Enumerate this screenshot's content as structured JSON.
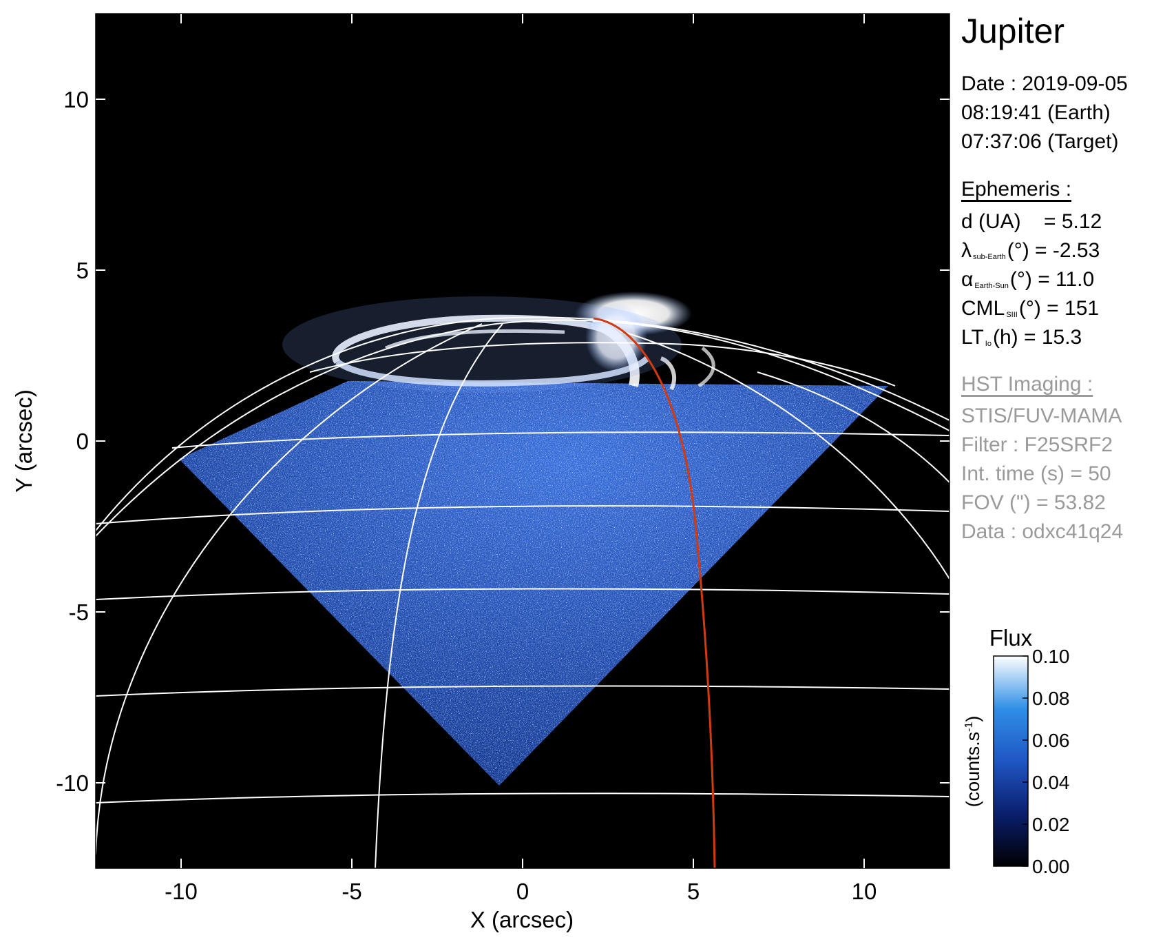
{
  "figure": {
    "title": "Jupiter",
    "x_axis": {
      "label": "X (arcsec)",
      "range": [
        -12.5,
        12.5
      ],
      "ticks": [
        -10,
        -5,
        0,
        5,
        10
      ]
    },
    "y_axis": {
      "label": "Y (arcsec)",
      "range": [
        -12.5,
        12.5
      ],
      "ticks": [
        -10,
        -5,
        0,
        5,
        10
      ]
    },
    "colorbar": {
      "title": "Flux",
      "unit_label": "(counts.s",
      "unit_power": "-1",
      "unit_close": ")",
      "range": [
        0.0,
        0.1
      ],
      "ticks": [
        "0.00",
        "0.02",
        "0.04",
        "0.06",
        "0.08",
        "0.10"
      ]
    },
    "colors": {
      "background": "#000000",
      "grid": "#ffffff",
      "footprint": "#d23a10",
      "aurora": "#ffffff",
      "disk_emission": "#2f63d6"
    }
  },
  "info": {
    "date": {
      "line1": "Date : 2019-09-05",
      "line2": "08:19:41 (Earth)",
      "line3": "07:37:06 (Target)"
    },
    "ephemeris": {
      "header": "Ephemeris :",
      "d": "d (UA)    = 5.12",
      "lambda_sym": "λ",
      "lambda_sub": "sub-Earth",
      "lambda_val": "(°) = -2.53",
      "alpha_sym": "α",
      "alpha_sub": "Earth-Sun",
      "alpha_val": "(°) = 11.0",
      "cml_sym": "CML",
      "cml_sub": "SIII",
      "cml_val": "(°) = 151",
      "lt_sym": "LT",
      "lt_sub": "Io",
      "lt_val": "(h) = 15.3"
    },
    "imaging": {
      "header": "HST Imaging :",
      "instrument": "STIS/FUV-MAMA",
      "filter": "Filter : F25SRF2",
      "int_time": "Int. time (s) = 50",
      "fov": "FOV (\") = 53.82",
      "data": "Data : odxc41q24"
    }
  }
}
